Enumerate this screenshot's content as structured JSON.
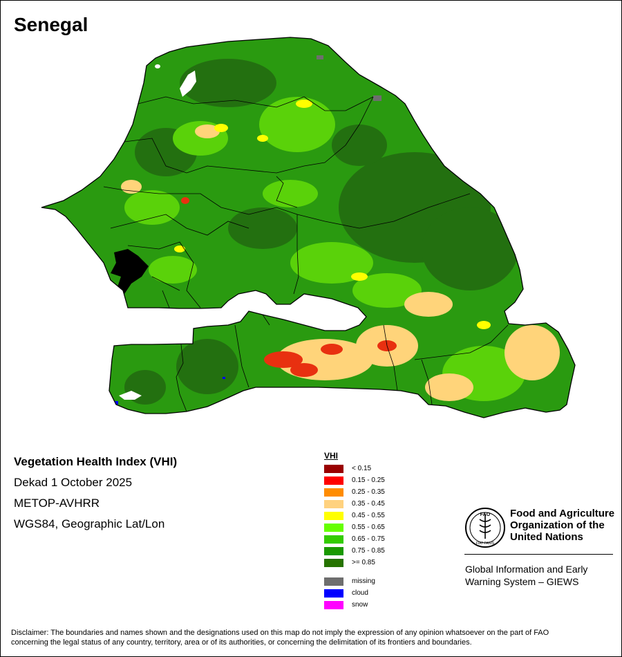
{
  "map": {
    "title": "Senegal",
    "colors": {
      "ocean_background": "#ffffff",
      "border": "#000000",
      "dominant_vegetation": "#2a9a10",
      "dense_vegetation": "#237010",
      "moderate_vegetation": "#5ad20a",
      "stressed_vegetation": "#ffd47a",
      "severe_stress": "#e83010",
      "water_body": "#ffffff",
      "mangrove_estuary": "#000000"
    }
  },
  "info": {
    "product": "Vegetation Health Index (VHI)",
    "period": "Dekad 1 October 2025",
    "sensor": "METOP-AVHRR",
    "projection": "WGS84, Geographic Lat/Lon"
  },
  "legend": {
    "title": "VHI",
    "classes": [
      {
        "label": "< 0.15",
        "color": "#990000"
      },
      {
        "label": "0.15 - 0.25",
        "color": "#ff0000"
      },
      {
        "label": "0.25 - 0.35",
        "color": "#ff8c00"
      },
      {
        "label": "0.35 - 0.45",
        "color": "#ffd27f"
      },
      {
        "label": "0.45 - 0.55",
        "color": "#ffff00"
      },
      {
        "label": "0.55 - 0.65",
        "color": "#66ff00"
      },
      {
        "label": "0.65 - 0.75",
        "color": "#33cc00"
      },
      {
        "label": "0.75 - 0.85",
        "color": "#1a9900"
      },
      {
        "label": ">= 0.85",
        "color": "#267300"
      }
    ],
    "special": [
      {
        "label": "missing",
        "color": "#6e6e6e"
      },
      {
        "label": "cloud",
        "color": "#0000ff"
      },
      {
        "label": "snow",
        "color": "#ff00ff"
      }
    ]
  },
  "organization": {
    "logo_text": "FAO",
    "logo_motto": "FIAT PANIS",
    "name_line1": "Food and Agriculture",
    "name_line2": "Organization of the",
    "name_line3": "United Nations",
    "system_line1": "Global Information and Early",
    "system_line2": "Warning System – GIEWS",
    "logo_color": "#000000"
  },
  "disclaimer": {
    "line1": "Disclaimer: The boundaries and names shown and the designations used on this map do not imply the expression of any opinion whatsoever on the part of FAO",
    "line2": "concerning the legal status of any country, territory, area or of its authorities, or concerning the delimitation of its frontiers and boundaries."
  }
}
